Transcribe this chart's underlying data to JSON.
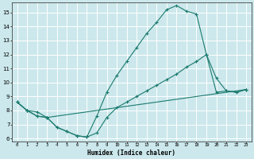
{
  "xlabel": "Humidex (Indice chaleur)",
  "bg_color": "#cce8ec",
  "grid_color": "#ffffff",
  "line_color": "#1a7a6e",
  "xlim": [
    -0.5,
    23.5
  ],
  "ylim": [
    5.8,
    15.7
  ],
  "xticks": [
    0,
    1,
    2,
    3,
    4,
    5,
    6,
    7,
    8,
    9,
    10,
    11,
    12,
    13,
    14,
    15,
    16,
    17,
    18,
    19,
    20,
    21,
    22,
    23
  ],
  "yticks": [
    6,
    7,
    8,
    9,
    10,
    11,
    12,
    13,
    14,
    15
  ],
  "line1_x": [
    0,
    1,
    2,
    3,
    4,
    5,
    6,
    7,
    8,
    9,
    10,
    11,
    12,
    13,
    14,
    15,
    16,
    17,
    18,
    19,
    20,
    21,
    22,
    23
  ],
  "line1_y": [
    8.6,
    8.0,
    7.6,
    7.5,
    6.8,
    6.5,
    6.2,
    6.1,
    6.4,
    7.5,
    8.2,
    8.6,
    9.0,
    9.4,
    9.8,
    10.2,
    10.6,
    11.1,
    11.5,
    12.0,
    9.3,
    9.4,
    9.3,
    9.5
  ],
  "line2_x": [
    0,
    1,
    2,
    3,
    4,
    5,
    6,
    7,
    8,
    9,
    10,
    11,
    12,
    13,
    14,
    15,
    16,
    17,
    18,
    19,
    20,
    21,
    22,
    23
  ],
  "line2_y": [
    8.6,
    8.0,
    7.6,
    7.5,
    6.8,
    6.5,
    6.2,
    6.1,
    7.6,
    9.3,
    10.5,
    11.5,
    12.5,
    13.5,
    14.3,
    15.2,
    15.5,
    15.1,
    14.9,
    12.0,
    10.3,
    9.4,
    9.3,
    9.5
  ],
  "line3_x": [
    0,
    1,
    2,
    3,
    23
  ],
  "line3_y": [
    8.6,
    8.0,
    7.9,
    7.5,
    9.5
  ]
}
